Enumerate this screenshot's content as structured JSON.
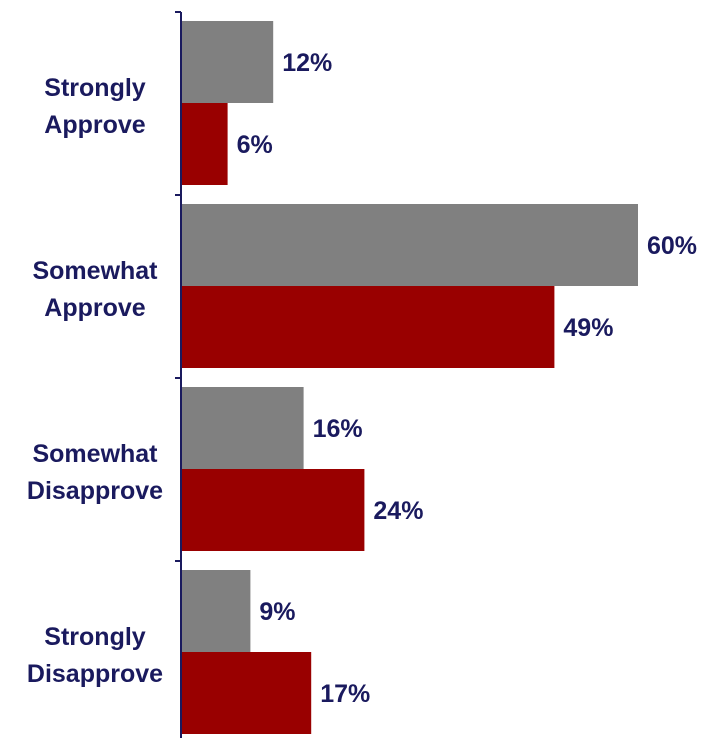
{
  "chart_data": {
    "type": "bar",
    "orientation": "horizontal",
    "categories": [
      [
        "Strongly",
        "Approve"
      ],
      [
        "Somewhat",
        "Approve"
      ],
      [
        "Somewhat",
        "Disapprove"
      ],
      [
        "Strongly",
        "Disapprove"
      ]
    ],
    "series": [
      {
        "values": [
          12,
          60,
          16,
          9
        ],
        "value_labels": [
          "12%",
          "60%",
          "16%",
          "9%"
        ],
        "color": "#808080"
      },
      {
        "values": [
          6,
          49,
          24,
          17
        ],
        "value_labels": [
          "6%",
          "49%",
          "24%",
          "17%"
        ],
        "color": "#990000"
      }
    ],
    "xlim": [
      0,
      60
    ],
    "grid": false,
    "legend": "none",
    "title": "",
    "xlabel": "",
    "ylabel": ""
  }
}
